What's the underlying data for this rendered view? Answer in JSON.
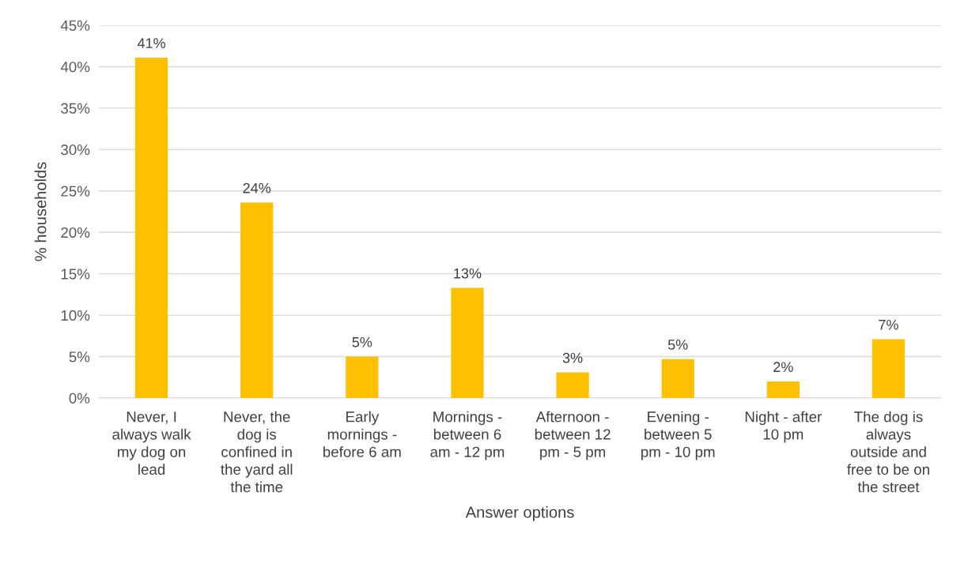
{
  "chart_data": {
    "type": "bar",
    "xlabel": "Answer options",
    "ylabel": "% households",
    "categories": [
      "Never, I\nalways walk\nmy dog on\nlead",
      "Never, the\ndog is\nconfined in\nthe yard all\nthe time",
      "Early\nmornings -\nbefore 6 am",
      "Mornings -\nbetween 6\nam - 12 pm",
      "Afternoon -\nbetween 12\npm - 5 pm",
      "Evening -\nbetween 5\npm - 10 pm",
      "Night - after\n10 pm",
      "The dog is\nalways\noutside and\nfree to be on\nthe street"
    ],
    "values": [
      41.1,
      23.6,
      5.0,
      13.3,
      3.1,
      4.7,
      2.0,
      7.1
    ],
    "value_labels": [
      "41%",
      "24%",
      "5%",
      "13%",
      "3%",
      "5%",
      "2%",
      "7%"
    ],
    "color": "#ffc000",
    "ylim": [
      0,
      45
    ],
    "yticks": [
      {
        "value": 0,
        "label": "0%"
      },
      {
        "value": 5,
        "label": "5%"
      },
      {
        "value": 10,
        "label": "10%"
      },
      {
        "value": 15,
        "label": "15%"
      },
      {
        "value": 20,
        "label": "20%"
      },
      {
        "value": 25,
        "label": "25%"
      },
      {
        "value": 30,
        "label": "30%"
      },
      {
        "value": 35,
        "label": "35%"
      },
      {
        "value": 40,
        "label": "40%"
      },
      {
        "value": 45,
        "label": "45%"
      }
    ],
    "grid": "y",
    "legend": false
  }
}
